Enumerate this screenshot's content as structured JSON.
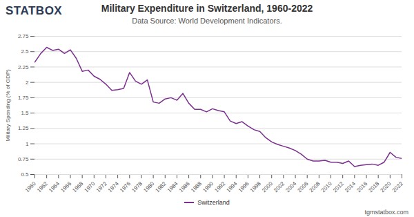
{
  "chart_data": {
    "type": "line",
    "logo": "STATBOX",
    "title": "Military Expenditure in Switzerland, 1960-2022",
    "subtitle": "Data Source: World Development Indicators.",
    "caption": "tgmstatbox.com",
    "y_label": "Military Spending (% of GDP)",
    "x": [
      1960,
      1961,
      1962,
      1963,
      1964,
      1965,
      1966,
      1967,
      1968,
      1969,
      1970,
      1971,
      1972,
      1973,
      1974,
      1975,
      1976,
      1977,
      1978,
      1979,
      1980,
      1981,
      1982,
      1983,
      1984,
      1985,
      1986,
      1987,
      1988,
      1989,
      1990,
      1991,
      1992,
      1993,
      1994,
      1995,
      1996,
      1997,
      1998,
      1999,
      2000,
      2001,
      2002,
      2003,
      2004,
      2005,
      2006,
      2007,
      2008,
      2009,
      2010,
      2011,
      2012,
      2013,
      2014,
      2015,
      2016,
      2017,
      2018,
      2019,
      2020,
      2021,
      2022
    ],
    "series": [
      {
        "name": "Switzerland",
        "color": "#7b2f8e",
        "values": [
          2.33,
          2.47,
          2.57,
          2.52,
          2.54,
          2.47,
          2.53,
          2.39,
          2.18,
          2.2,
          2.1,
          2.05,
          1.97,
          1.87,
          1.88,
          1.9,
          2.16,
          2.02,
          1.97,
          2.04,
          1.68,
          1.66,
          1.73,
          1.75,
          1.71,
          1.82,
          1.66,
          1.56,
          1.56,
          1.52,
          1.57,
          1.54,
          1.52,
          1.37,
          1.33,
          1.36,
          1.29,
          1.23,
          1.2,
          1.1,
          1.03,
          0.99,
          0.96,
          0.93,
          0.89,
          0.83,
          0.75,
          0.72,
          0.72,
          0.73,
          0.7,
          0.7,
          0.68,
          0.72,
          0.63,
          0.65,
          0.66,
          0.67,
          0.65,
          0.7,
          0.86,
          0.78,
          0.76
        ]
      }
    ],
    "xlim": [
      1960,
      2022
    ],
    "xticks": [
      1960,
      1962,
      1964,
      1966,
      1968,
      1970,
      1972,
      1974,
      1976,
      1978,
      1980,
      1982,
      1984,
      1986,
      1988,
      1990,
      1992,
      1994,
      1996,
      1998,
      2000,
      2002,
      2004,
      2006,
      2008,
      2010,
      2012,
      2014,
      2016,
      2018,
      2020,
      2022
    ],
    "ylim": [
      0.5,
      2.75
    ],
    "yticks": [
      0.5,
      0.75,
      1,
      1.25,
      1.5,
      1.75,
      2,
      2.25,
      2.5,
      2.75
    ],
    "grid": true,
    "legend": "bottom"
  }
}
